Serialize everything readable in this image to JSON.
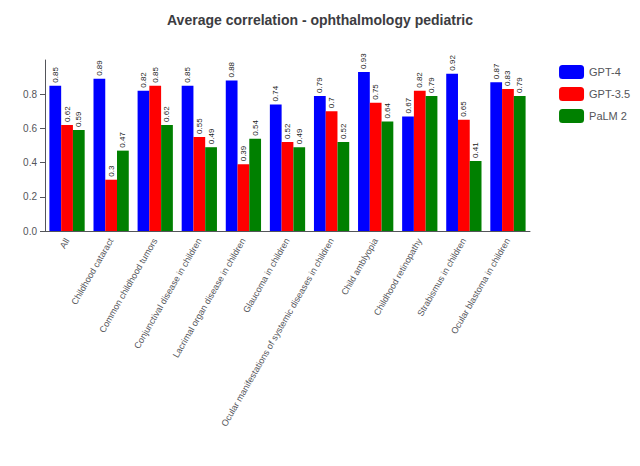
{
  "chart_data": {
    "type": "bar",
    "title": "Average correlation - ophthalmology pediatric",
    "categories": [
      "All",
      "Childhood cataract",
      "Common childhood tumors",
      "Conjunctival disease in children",
      "Lacrimal organ disease in children",
      "Glaucoma in children",
      "Ocular manifestations of systemic diseases in children",
      "Child amblyopia",
      "Childhood retinopathy",
      "Strabismus in children",
      "Ocular blastoma in children"
    ],
    "series": [
      {
        "name": "GPT-4",
        "color": "#0000ff",
        "values": [
          0.85,
          0.89,
          0.82,
          0.85,
          0.88,
          0.74,
          0.79,
          0.93,
          0.67,
          0.92,
          0.87
        ]
      },
      {
        "name": "GPT-3.5",
        "color": "#ff0000",
        "values": [
          0.62,
          0.3,
          0.85,
          0.55,
          0.39,
          0.52,
          0.7,
          0.75,
          0.82,
          0.65,
          0.83
        ]
      },
      {
        "name": "PaLM 2",
        "color": "#008000",
        "values": [
          0.59,
          0.47,
          0.62,
          0.49,
          0.54,
          0.49,
          0.52,
          0.64,
          0.79,
          0.41,
          0.79
        ]
      }
    ],
    "ylim": [
      0.0,
      1.0
    ],
    "yticks": [
      {
        "value": 0,
        "label": "0.0"
      },
      0.2,
      0.4,
      0.6,
      0.8
    ],
    "grid": false,
    "legend": "upper right",
    "data_labels": true
  }
}
